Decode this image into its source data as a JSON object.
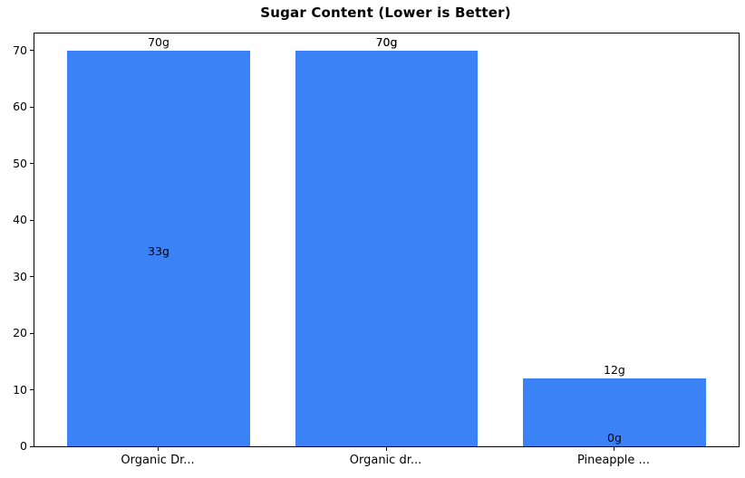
{
  "chart_data": {
    "type": "bar",
    "title": "Sugar Content (Lower is Better)",
    "categories": [
      "Organic Dr...",
      "Organic dr...",
      "Pineapple ..."
    ],
    "series": [
      {
        "values": [
          70,
          70,
          12
        ],
        "labels": [
          "70g",
          "70g",
          "12g"
        ]
      },
      {
        "values": [
          33,
          70,
          0
        ],
        "labels": [
          "33g",
          "70g",
          "0g"
        ]
      }
    ],
    "bar_color": "#3b82f6",
    "label_color": "#000000",
    "axis_color": "#000000",
    "background_color": "#ffffff",
    "yticks": [
      0,
      10,
      20,
      30,
      40,
      50,
      60,
      70
    ],
    "ylim": [
      0,
      73
    ],
    "xlim": [
      -0.545,
      2.545
    ],
    "bar_width": 0.8,
    "grid": false,
    "legend": "none"
  }
}
